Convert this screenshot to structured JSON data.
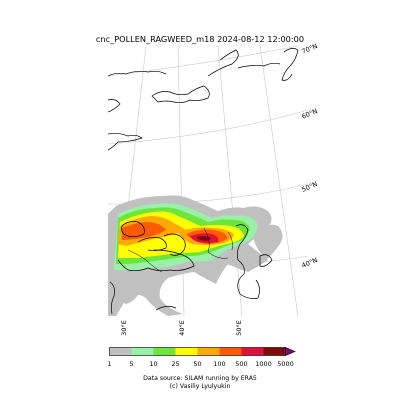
{
  "title": "cnc_POLLEN_RAGWEED_m18 2024-08-12 12:00:00",
  "lat_labels": [
    "70°N",
    "60°N",
    "50°N",
    "40°N"
  ],
  "lon_labels": [
    "30°E",
    "40°E",
    "50°E"
  ],
  "colorbar": {
    "ticks": [
      "1",
      "5",
      "10",
      "25",
      "50",
      "100",
      "500",
      "1000",
      "5000"
    ],
    "colors": [
      "#c0c0c0",
      "#99f0a8",
      "#6de63a",
      "#ffff00",
      "#ffaa00",
      "#ff5a00",
      "#e0103a",
      "#7f0a0a",
      "#800080"
    ]
  },
  "source_line1": "Data source: SILAM running by ERA5",
  "source_line2": "(c) Vasiliy Lyulyukin"
}
